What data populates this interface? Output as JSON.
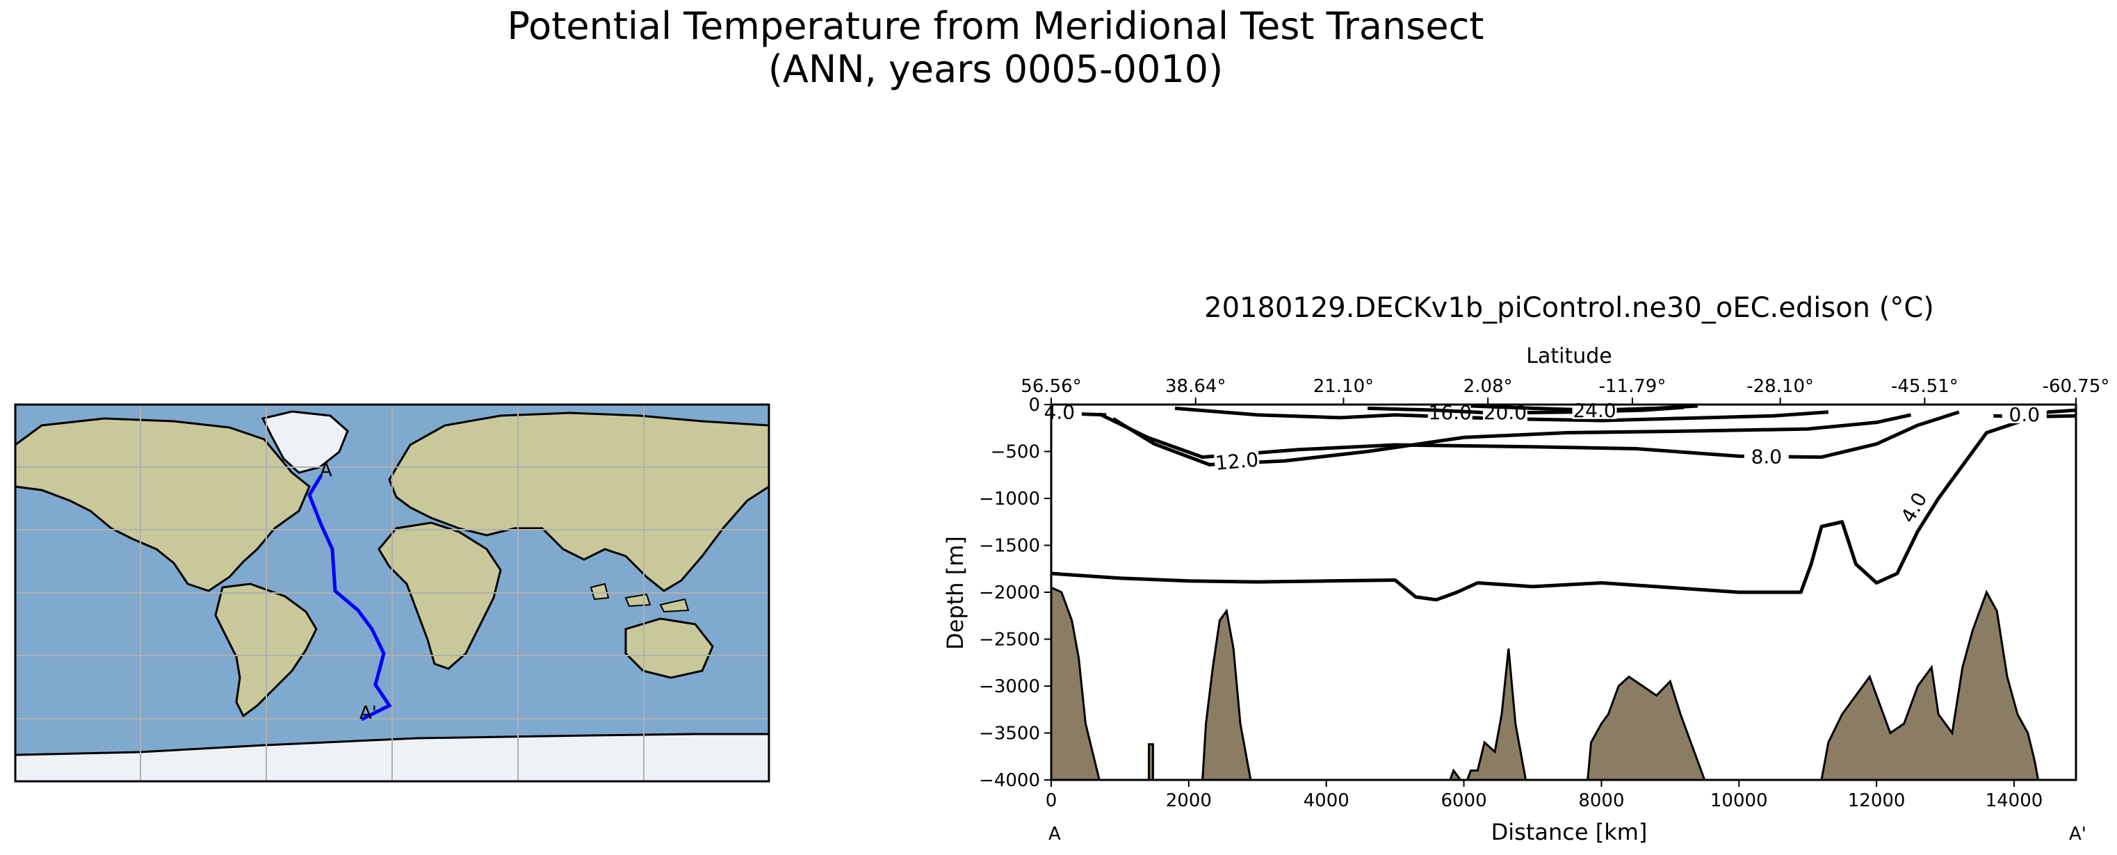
{
  "figure": {
    "title_line1": "Potential Temperature from Meridional Test Transect",
    "title_line2": "(ANN, years 0005-0010)"
  },
  "map": {
    "transect_start_label": "A",
    "transect_end_label": "A'",
    "transect_color": "#0000ff",
    "ocean_color": "#7fa9cf",
    "land_color": "#c9c89a",
    "ice_color": "#eef1f6"
  },
  "chart_data": {
    "type": "contour",
    "title": "20180129.DECKv1b_piControl.ne30_oEC.edison (°C)",
    "xlabel": "Distance [km]",
    "ylabel": "Depth [m]",
    "top_xlabel": "Latitude",
    "xlim": [
      0,
      14900
    ],
    "ylim": [
      -4000,
      0
    ],
    "x_ticks": [
      0,
      2000,
      4000,
      6000,
      8000,
      10000,
      12000,
      14000
    ],
    "x_tick_labels": [
      "0",
      "2000",
      "4000",
      "6000",
      "8000",
      "10000",
      "12000",
      "14000"
    ],
    "y_ticks": [
      0,
      -500,
      -1000,
      -1500,
      -2000,
      -2500,
      -3000,
      -3500,
      -4000
    ],
    "y_tick_labels": [
      "0",
      "−500",
      "−1000",
      "−1500",
      "−2000",
      "−2500",
      "−3000",
      "−3500",
      "−4000"
    ],
    "lat_ticks_km": [
      0,
      2100,
      4250,
      6350,
      8450,
      10600,
      12700,
      14900
    ],
    "lat_tick_labels": [
      "56.56°",
      "38.64°",
      "21.10°",
      "2.08°",
      "-11.79°",
      "-28.10°",
      "-45.51°",
      "-60.75°"
    ],
    "start_label": "A",
    "end_label": "A'",
    "bathymetry_color": "#8b7d63",
    "contours": [
      {
        "level": "4.0",
        "label": "4.0",
        "label_x": 12550,
        "label_y": -1100,
        "label_rot": -60,
        "points": [
          [
            0,
            -1800
          ],
          [
            1000,
            -1850
          ],
          [
            2000,
            -1880
          ],
          [
            3000,
            -1890
          ],
          [
            4000,
            -1880
          ],
          [
            5000,
            -1870
          ],
          [
            5300,
            -2050
          ],
          [
            5600,
            -2080
          ],
          [
            5900,
            -2000
          ],
          [
            6200,
            -1900
          ],
          [
            7000,
            -1940
          ],
          [
            8000,
            -1900
          ],
          [
            9000,
            -1950
          ],
          [
            10000,
            -2000
          ],
          [
            10900,
            -2000
          ],
          [
            11050,
            -1700
          ],
          [
            11200,
            -1300
          ],
          [
            11500,
            -1250
          ],
          [
            11700,
            -1700
          ],
          [
            12000,
            -1900
          ],
          [
            12300,
            -1800
          ],
          [
            12600,
            -1350
          ],
          [
            12900,
            -1000
          ],
          [
            13200,
            -700
          ],
          [
            13600,
            -300
          ],
          [
            14500,
            -80
          ],
          [
            14900,
            -60
          ]
        ]
      },
      {
        "level": "8.0",
        "label": "8.0",
        "label_x": 10400,
        "label_y": -560,
        "label_rot": 0,
        "points": [
          [
            700,
            -100
          ],
          [
            1400,
            -350
          ],
          [
            2200,
            -560
          ],
          [
            3600,
            -480
          ],
          [
            5000,
            -430
          ],
          [
            7000,
            -450
          ],
          [
            8500,
            -470
          ],
          [
            10000,
            -550
          ],
          [
            11200,
            -560
          ],
          [
            12000,
            -420
          ],
          [
            12600,
            -220
          ],
          [
            13200,
            -80
          ]
        ]
      },
      {
        "level": "12.0",
        "label": "12.0",
        "label_x": 2700,
        "label_y": -610,
        "label_rot": -5,
        "points": [
          [
            900,
            -150
          ],
          [
            1500,
            -420
          ],
          [
            2300,
            -640
          ],
          [
            3400,
            -600
          ],
          [
            4600,
            -500
          ],
          [
            6000,
            -350
          ],
          [
            7500,
            -300
          ],
          [
            9500,
            -280
          ],
          [
            11000,
            -260
          ],
          [
            12000,
            -190
          ],
          [
            12500,
            -110
          ]
        ]
      },
      {
        "level": "16.0",
        "label": "16.0",
        "label_x": 5800,
        "label_y": -90,
        "label_rot": 0,
        "points": [
          [
            1800,
            -40
          ],
          [
            3000,
            -110
          ],
          [
            4200,
            -140
          ],
          [
            5000,
            -110
          ],
          [
            6500,
            -150
          ],
          [
            8000,
            -170
          ],
          [
            9000,
            -150
          ],
          [
            10500,
            -120
          ],
          [
            11300,
            -80
          ]
        ]
      },
      {
        "level": "20.0",
        "label": "20.0",
        "label_x": 6600,
        "label_y": -90,
        "label_rot": 0,
        "points": [
          [
            4600,
            -40
          ],
          [
            5600,
            -60
          ],
          [
            6400,
            -90
          ],
          [
            7600,
            -80
          ],
          [
            8600,
            -60
          ],
          [
            9200,
            -30
          ]
        ]
      },
      {
        "level": "24.0",
        "label": "24.0",
        "label_x": 7900,
        "label_y": -65,
        "label_rot": 0,
        "points": [
          [
            6100,
            -15
          ],
          [
            7000,
            -40
          ],
          [
            7900,
            -60
          ],
          [
            8800,
            -40
          ],
          [
            9400,
            -15
          ]
        ]
      },
      {
        "level": "0.0",
        "label": "0.0",
        "label_x": 14150,
        "label_y": -110,
        "label_rot": 0,
        "points": [
          [
            13700,
            -120
          ],
          [
            14200,
            -130
          ],
          [
            14900,
            -120
          ]
        ]
      },
      {
        "level": "4.0",
        "label": "4.0",
        "label_x": 120,
        "label_y": -85,
        "label_rot": 0,
        "points": [
          [
            0,
            -70
          ],
          [
            400,
            -100
          ],
          [
            800,
            -110
          ]
        ]
      }
    ],
    "bathymetry": [
      [
        0,
        -4000
      ],
      [
        0,
        -1950
      ],
      [
        150,
        -2000
      ],
      [
        300,
        -2300
      ],
      [
        400,
        -2700
      ],
      [
        500,
        -3400
      ],
      [
        600,
        -3700
      ],
      [
        700,
        -4000
      ],
      [
        1420,
        -4000
      ],
      [
        1420,
        -3620
      ],
      [
        1480,
        -3620
      ],
      [
        1480,
        -4000
      ],
      [
        2200,
        -4000
      ],
      [
        2250,
        -3400
      ],
      [
        2350,
        -2800
      ],
      [
        2450,
        -2300
      ],
      [
        2550,
        -2200
      ],
      [
        2650,
        -2600
      ],
      [
        2750,
        -3400
      ],
      [
        2900,
        -4000
      ],
      [
        5800,
        -4000
      ],
      [
        5850,
        -3900
      ],
      [
        5950,
        -4000
      ],
      [
        6050,
        -4000
      ],
      [
        6100,
        -3900
      ],
      [
        6200,
        -3900
      ],
      [
        6300,
        -3600
      ],
      [
        6450,
        -3700
      ],
      [
        6550,
        -3300
      ],
      [
        6650,
        -2600
      ],
      [
        6750,
        -3400
      ],
      [
        6900,
        -4000
      ],
      [
        7800,
        -4000
      ],
      [
        7850,
        -3600
      ],
      [
        8000,
        -3400
      ],
      [
        8100,
        -3300
      ],
      [
        8250,
        -3000
      ],
      [
        8400,
        -2900
      ],
      [
        8600,
        -3000
      ],
      [
        8800,
        -3100
      ],
      [
        9000,
        -2950
      ],
      [
        9150,
        -3300
      ],
      [
        9300,
        -3600
      ],
      [
        9500,
        -4000
      ],
      [
        11200,
        -4000
      ],
      [
        11300,
        -3600
      ],
      [
        11500,
        -3300
      ],
      [
        11700,
        -3100
      ],
      [
        11900,
        -2900
      ],
      [
        12050,
        -3200
      ],
      [
        12200,
        -3500
      ],
      [
        12400,
        -3400
      ],
      [
        12600,
        -3000
      ],
      [
        12800,
        -2800
      ],
      [
        12900,
        -3300
      ],
      [
        13100,
        -3500
      ],
      [
        13250,
        -2800
      ],
      [
        13400,
        -2400
      ],
      [
        13600,
        -2000
      ],
      [
        13750,
        -2200
      ],
      [
        13900,
        -2900
      ],
      [
        14050,
        -3300
      ],
      [
        14200,
        -3500
      ],
      [
        14300,
        -3800
      ],
      [
        14350,
        -4000
      ]
    ]
  }
}
